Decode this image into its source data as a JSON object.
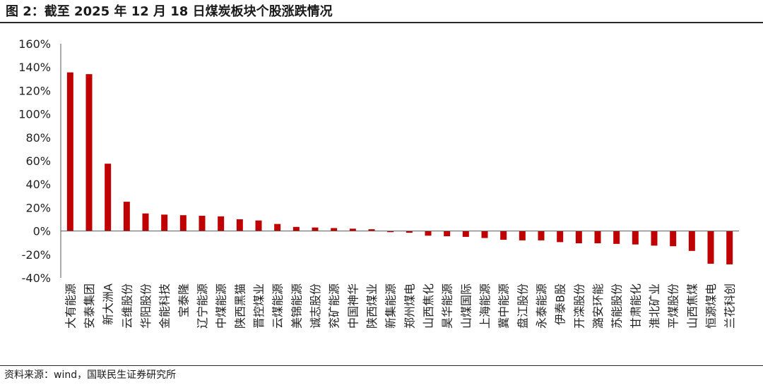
{
  "header": {
    "title": "图 2：截至 2025 年 12 月 18 日煤炭板块个股涨跌情况"
  },
  "footer": {
    "source": "资料来源：wind，国联民生证券研究所"
  },
  "chart_data": {
    "type": "bar",
    "title": "",
    "xlabel": "",
    "ylabel": "",
    "ylim": [
      -40,
      160
    ],
    "yticks": [
      160,
      140,
      120,
      100,
      80,
      60,
      40,
      20,
      0,
      -20,
      -40
    ],
    "ytick_labels": [
      "160%",
      "140%",
      "120%",
      "100%",
      "80%",
      "60%",
      "40%",
      "20%",
      "0%",
      "-20%",
      "-40%"
    ],
    "unit": "%",
    "bar_color": "#c00000",
    "axis_color": "#595959",
    "grid": false,
    "legend": "none",
    "categories": [
      "大有能源",
      "安泰集团",
      "新大洲A",
      "云维股份",
      "华阳股份",
      "金能科技",
      "宝泰隆",
      "辽宁能源",
      "中煤能源",
      "陕西黑猫",
      "晋控煤业",
      "云煤能源",
      "美锦能源",
      "诚志股份",
      "兖矿能源",
      "中国神华",
      "陕西煤业",
      "新集能源",
      "郑州煤电",
      "山西焦化",
      "昊华能源",
      "山煤国际",
      "上海能源",
      "冀中能源",
      "盘江股份",
      "永泰能源",
      "伊泰B股",
      "开滦股份",
      "潞安环能",
      "苏能股份",
      "甘肃能化",
      "淮北矿业",
      "平煤股份",
      "山西焦煤",
      "恒源煤电",
      "兰花科创"
    ],
    "values": [
      135.5,
      134,
      57.5,
      25,
      15,
      14,
      13.5,
      13,
      12.5,
      10,
      9,
      6,
      3.5,
      3,
      2.5,
      2,
      1.5,
      -1,
      -1.5,
      -4,
      -4.5,
      -5,
      -6,
      -7.5,
      -8,
      -8,
      -9.5,
      -10.5,
      -10.5,
      -11,
      -11.5,
      -12.5,
      -13,
      -17,
      -28,
      -28.5
    ]
  }
}
